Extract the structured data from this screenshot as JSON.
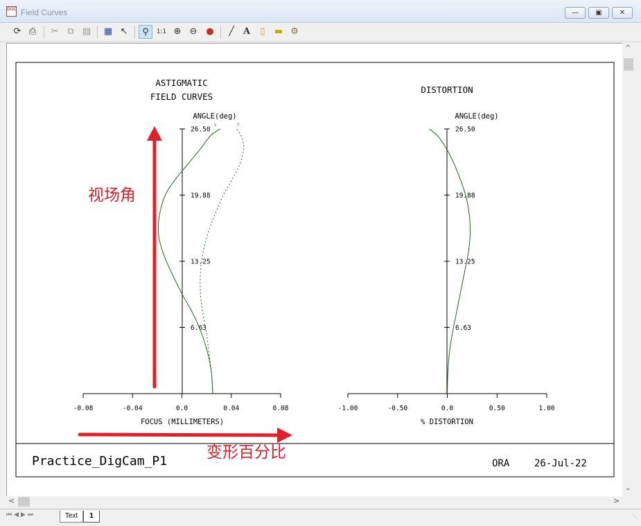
{
  "window": {
    "title": "Field Curves",
    "icon_text": "DOC"
  },
  "toolbar": {
    "buttons": [
      "refresh-icon",
      "print-icon",
      "cut-icon",
      "copy-icon",
      "paste-icon",
      "save-icon",
      "pointer-icon",
      "zoom-window-icon",
      "zoom-1to1-icon",
      "zoom-in-icon",
      "zoom-out-icon",
      "pin-icon",
      "line-icon",
      "text-icon",
      "eraser-icon",
      "ruler-icon",
      "settings-icon"
    ]
  },
  "tabs": {
    "text_tab": "Text",
    "page_tab": "1"
  },
  "footer": {
    "name": "Practice_DigCam_P1",
    "org": "ORA",
    "date": "26-Jul-22"
  },
  "annotations": {
    "vertical": "视场角",
    "horizontal": "变形百分比",
    "color": "#e0202a"
  },
  "chart_data": [
    {
      "type": "line",
      "title_line1": "ASTIGMATIC",
      "title_line2": "FIELD CURVES",
      "xlabel": "FOCUS (MILLIMETERS)",
      "ylabel": "ANGLE(deg)",
      "xlim": [
        -0.08,
        0.08
      ],
      "ylim": [
        0,
        26.5
      ],
      "xticks": [
        "-0.08",
        "-0.04",
        "0.0",
        "0.04",
        "0.08"
      ],
      "xtick_values": [
        -0.08,
        -0.04,
        0,
        0.04,
        0.08
      ],
      "yticks": [
        "6.63",
        "13.25",
        "19.88",
        "26.50"
      ],
      "ytick_values": [
        6.63,
        13.25,
        19.88,
        26.5
      ],
      "series_labels": {
        "sagittal": "S",
        "tangential": "T"
      },
      "series": [
        {
          "name": "S",
          "style": "solid",
          "x": [
            0.025,
            0.024,
            0.021,
            0.016,
            0.009,
            0.0,
            -0.008,
            -0.015,
            -0.019,
            -0.018,
            -0.013,
            -0.005,
            0.005,
            0.015,
            0.023,
            0.031
          ],
          "y": [
            0,
            2,
            4,
            6,
            8,
            10,
            12,
            14,
            16,
            18,
            20,
            21.5,
            23,
            24.5,
            25.8,
            26.5
          ]
        },
        {
          "name": "T",
          "style": "dashed",
          "x": [
            0.025,
            0.024,
            0.022,
            0.02,
            0.017,
            0.015,
            0.015,
            0.017,
            0.021,
            0.027,
            0.034,
            0.041,
            0.047,
            0.05,
            0.049,
            0.046,
            0.044
          ],
          "y": [
            0,
            2,
            4,
            6,
            8,
            10,
            12,
            14,
            16,
            18,
            20,
            21.5,
            23,
            24.5,
            25.5,
            26.2,
            26.5
          ]
        }
      ],
      "line_color": "#1a6b1a"
    },
    {
      "type": "line",
      "title": "DISTORTION",
      "xlabel": "% DISTORTION",
      "ylabel": "ANGLE(deg)",
      "xlim": [
        -1.0,
        1.0
      ],
      "ylim": [
        0,
        26.5
      ],
      "xticks": [
        "-1.00",
        "-0.50",
        "0.0",
        "0.50",
        "1.00"
      ],
      "xtick_values": [
        -1,
        -0.5,
        0,
        0.5,
        1
      ],
      "yticks": [
        "6.63",
        "13.25",
        "19.88",
        "26.50"
      ],
      "ytick_values": [
        6.63,
        13.25,
        19.88,
        26.5
      ],
      "series": [
        {
          "name": "",
          "style": "solid",
          "x": [
            0,
            0.005,
            0.02,
            0.05,
            0.09,
            0.13,
            0.17,
            0.21,
            0.23,
            0.22,
            0.18,
            0.11,
            0.02,
            -0.08,
            -0.18
          ],
          "y": [
            0,
            2,
            4,
            6,
            8,
            10,
            12,
            14,
            16,
            18,
            20,
            22,
            24,
            25.6,
            26.5
          ]
        }
      ],
      "line_color": "#1a6b1a"
    }
  ]
}
